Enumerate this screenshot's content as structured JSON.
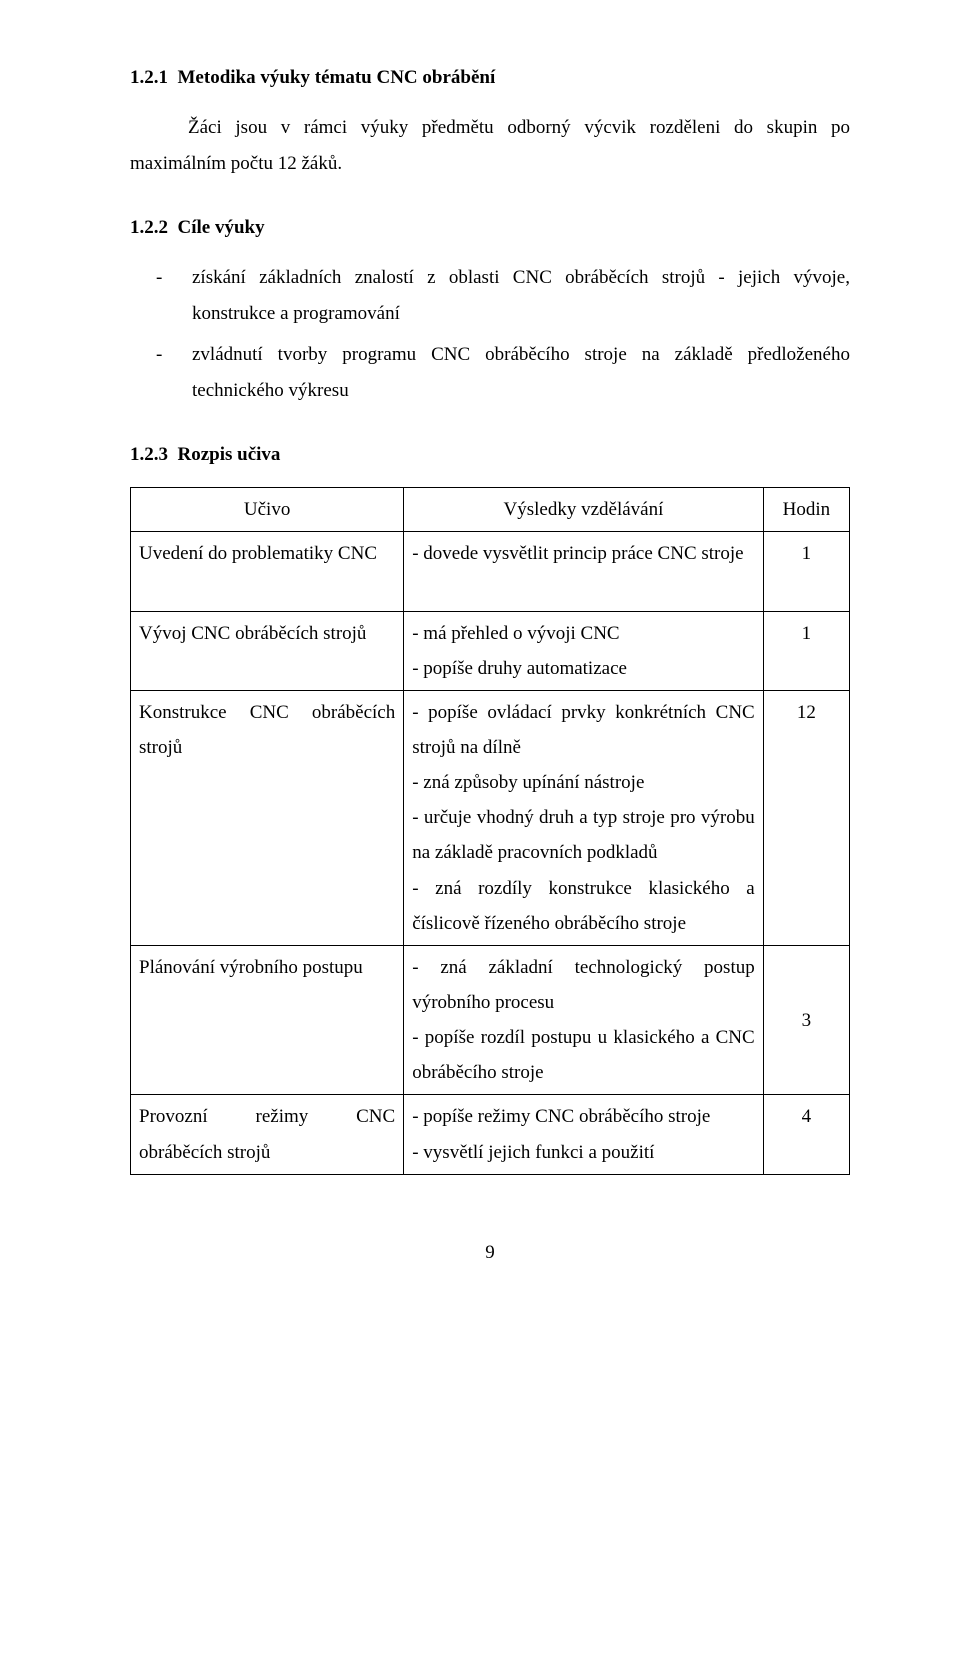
{
  "colors": {
    "text": "#000000",
    "bg": "#ffffff",
    "border": "#000000"
  },
  "typography": {
    "family": "Times New Roman",
    "body_size_pt": 14,
    "line_height": 1.9
  },
  "section1": {
    "number": "1.2.1",
    "title": "Metodika výuky tématu CNC obrábění",
    "paragraph": "Žáci jsou v rámci výuky předmětu odborný výcvik rozděleni do skupin po maximálním počtu 12 žáků."
  },
  "section2": {
    "number": "1.2.2",
    "title": "Cíle výuky",
    "bullets": [
      "získání základních znalostí z oblasti CNC obráběcích strojů - jejich vývoje, konstrukce a programování",
      "zvládnutí tvorby programu CNC obráběcího stroje na základě předloženého technického výkresu"
    ]
  },
  "section3": {
    "number": "1.2.3",
    "title": "Rozpis učiva",
    "table": {
      "headers": [
        "Učivo",
        "Výsledky vzdělávání",
        "Hodin"
      ],
      "col_widths_pct": [
        38,
        50,
        12
      ],
      "rows": [
        {
          "topic": "Uvedení do problematiky CNC",
          "outcomes": "- dovede vysvětlit princip práce CNC stroje",
          "hours": "1"
        },
        {
          "topic": "Vývoj CNC obráběcích strojů",
          "outcomes": "- má přehled o vývoji CNC\n- popíše druhy automatizace",
          "hours": "1"
        },
        {
          "topic": "Konstrukce CNC obráběcích strojů",
          "outcomes": "- popíše ovládací prvky konkrétních CNC  strojů na dílně\n- zná způsoby upínání nástroje\n- určuje vhodný druh  a typ  stroje  pro výrobu na základě pracovních podkladů\n-  zná  rozdíly  konstrukce  klasického a číslicově řízeného obráběcího stroje",
          "hours": "12"
        },
        {
          "topic": "Plánování výrobního postupu",
          "outcomes": "-  zná  základní  technologický  postup výrobního procesu\n-  popíše  rozdíl  postupu  u  klasického a CNC obráběcího stroje",
          "hours": "3"
        },
        {
          "topic": "Provozní režimy CNC obráběcích strojů",
          "outcomes": "-  popíše  režimy  CNC  obráběcího stroje\n- vysvětlí jejich funkci a použití",
          "hours": "4"
        }
      ]
    }
  },
  "page_number": "9"
}
